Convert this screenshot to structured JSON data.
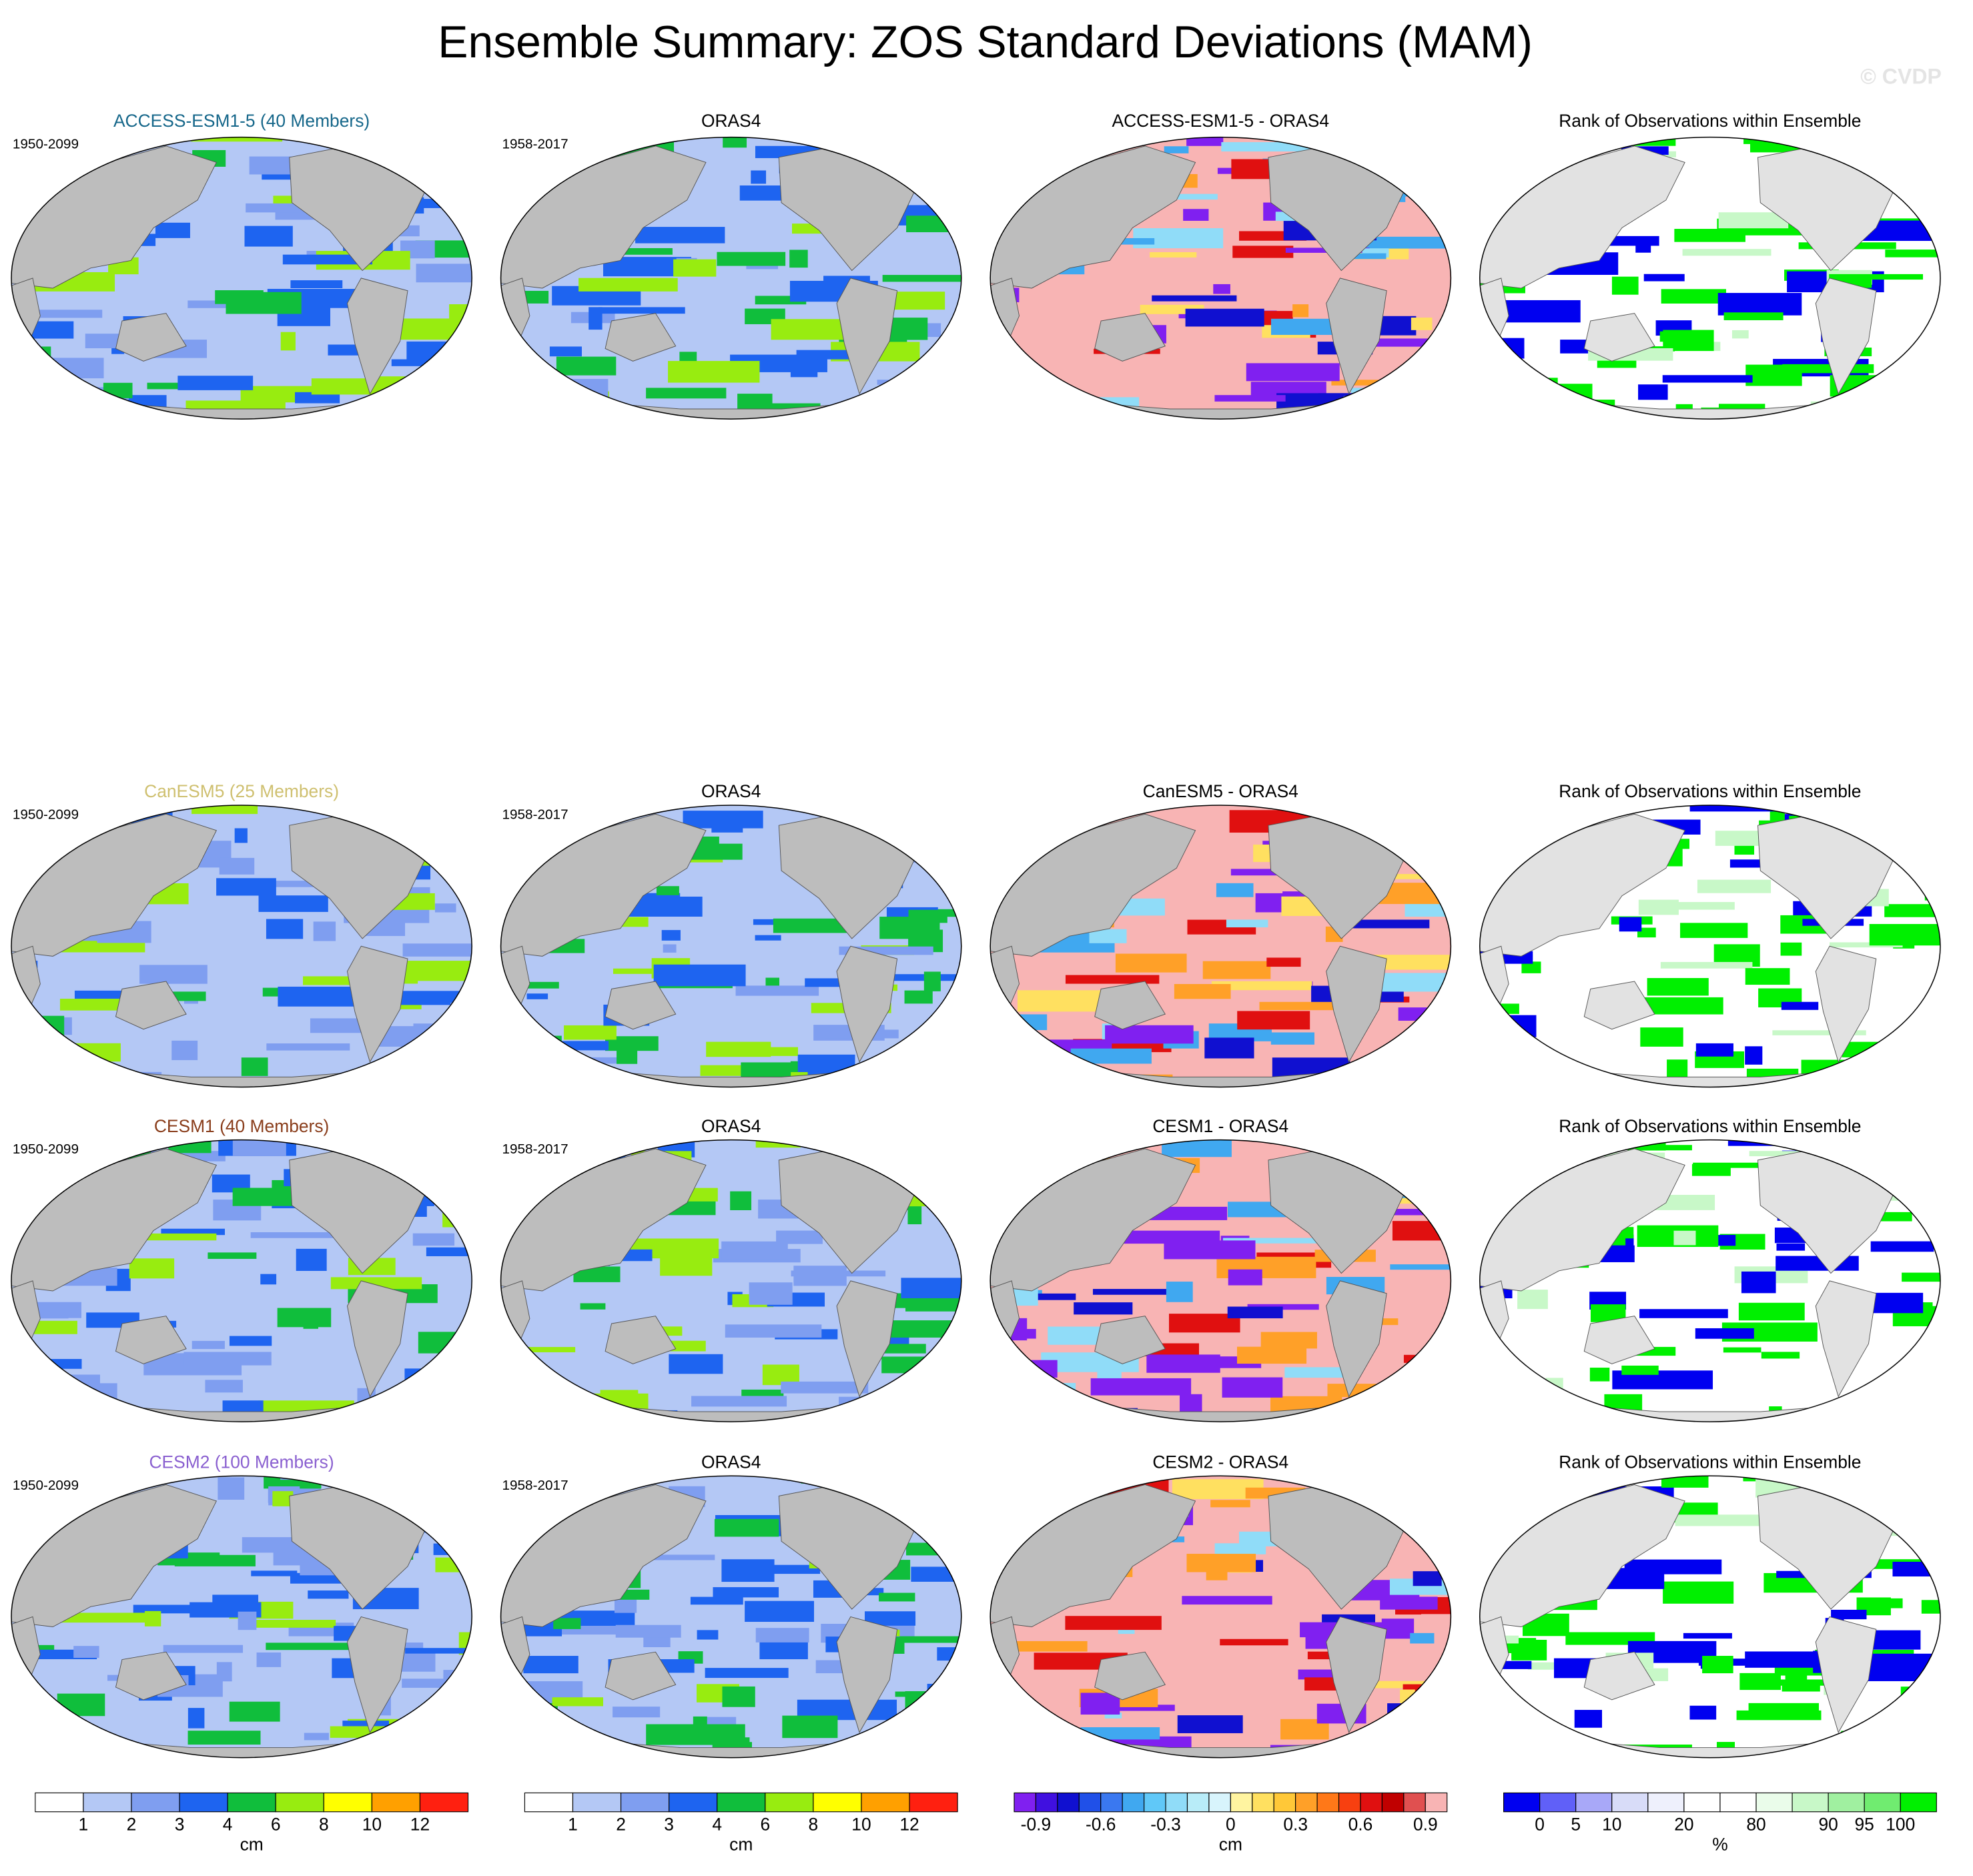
{
  "title": "Ensemble Summary: ZOS Standard Deviations (MAM)",
  "watermark": "© CVDP",
  "rows": [
    {
      "model": {
        "title": "ACCESS-ESM1-5 (40 Members)",
        "color": "#16678a",
        "years": "1950-2099"
      },
      "obs": {
        "title": "ORAS4",
        "years": "1958-2017"
      },
      "diff": {
        "title": "ACCESS-ESM1-5 - ORAS4"
      },
      "rank": {
        "title": "Rank of Observations within Ensemble"
      }
    },
    {
      "model": {
        "title": "CanESM5 (25 Members)",
        "color": "#cfc070",
        "years": "1950-2099"
      },
      "obs": {
        "title": "ORAS4",
        "years": "1958-2017"
      },
      "diff": {
        "title": "CanESM5 - ORAS4"
      },
      "rank": {
        "title": "Rank of Observations within Ensemble"
      }
    },
    {
      "model": {
        "title": "CESM1 (40 Members)",
        "color": "#8a3e1c",
        "years": "1950-2099"
      },
      "obs": {
        "title": "ORAS4",
        "years": "1958-2017"
      },
      "diff": {
        "title": "CESM1 - ORAS4"
      },
      "rank": {
        "title": "Rank of Observations within Ensemble"
      }
    },
    {
      "model": {
        "title": "CESM2 (100 Members)",
        "color": "#8a60d0",
        "years": "1950-2099"
      },
      "obs": {
        "title": "ORAS4",
        "years": "1958-2017"
      },
      "diff": {
        "title": "CESM2 - ORAS4"
      },
      "rank": {
        "title": "Rank of Observations within Ensemble"
      }
    }
  ],
  "colorbars": [
    {
      "unit": "cm",
      "labels": [
        "1",
        "2",
        "3",
        "4",
        "6",
        "8",
        "10",
        "12"
      ],
      "colors": [
        "#ffffff",
        "#b4c8f5",
        "#7f9ef0",
        "#1e64f0",
        "#10be3c",
        "#98ec10",
        "#ffff00",
        "#ffa000",
        "#ff2010"
      ]
    },
    {
      "unit": "cm",
      "labels": [
        "1",
        "2",
        "3",
        "4",
        "6",
        "8",
        "10",
        "12"
      ],
      "colors": [
        "#ffffff",
        "#b4c8f5",
        "#7f9ef0",
        "#1e64f0",
        "#10be3c",
        "#98ec10",
        "#ffff00",
        "#ffa000",
        "#ff2010"
      ]
    },
    {
      "unit": "cm",
      "labels": [
        "-0.9",
        "-0.6",
        "-0.3",
        "0",
        "0.3",
        "0.6",
        "0.9"
      ],
      "colors": [
        "#8020f0",
        "#4010e0",
        "#1010d0",
        "#2050e8",
        "#3a78f0",
        "#40a8f0",
        "#60c8f8",
        "#90dcf8",
        "#b8ecf8",
        "#d8f4fc",
        "#fff4a0",
        "#ffe060",
        "#ffc838",
        "#ffa028",
        "#ff7818",
        "#f84010",
        "#e01010",
        "#c00000",
        "#e05050",
        "#f8b4b4"
      ]
    },
    {
      "unit": "%",
      "labels": [
        "0",
        "5",
        "10",
        "20",
        "80",
        "90",
        "95",
        "100"
      ],
      "colors": [
        "#0000f0",
        "#6060f8",
        "#a8a8f8",
        "#d8dcf8",
        "#eef0fc",
        "#ffffff",
        "#ffffff",
        "#eafcea",
        "#c8f8c8",
        "#a0f0a0",
        "#70ec70",
        "#00f000"
      ]
    }
  ]
}
